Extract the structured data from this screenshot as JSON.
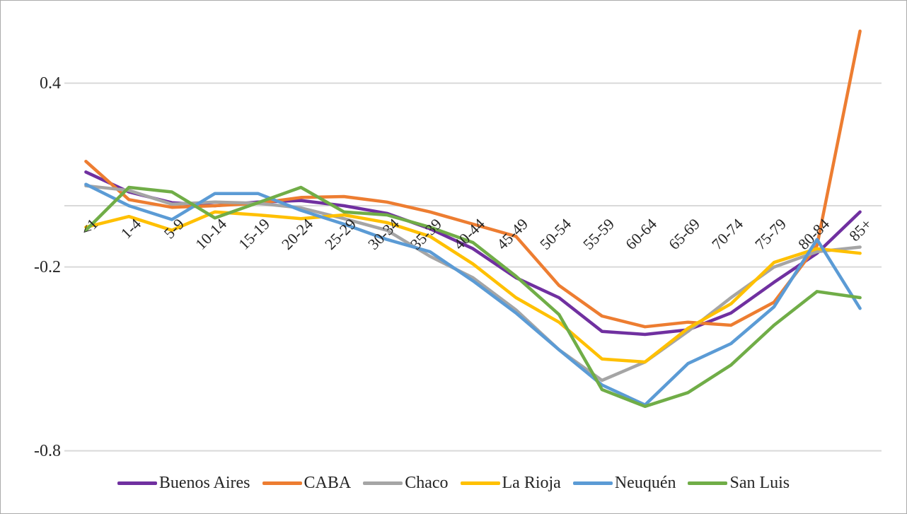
{
  "chart_data": {
    "type": "line",
    "title": "",
    "xlabel": "",
    "ylabel": "",
    "grid": true,
    "legend_position": "bottom",
    "categories": [
      "<1",
      "1-4",
      "5-9",
      "10-14",
      "15-19",
      "20-24",
      "25-29",
      "30-34",
      "35-39",
      "40-44",
      "45-49",
      "50-54",
      "55-59",
      "60-64",
      "65-69",
      "70-74",
      "75-79",
      "80-84",
      "85+"
    ],
    "series": [
      {
        "name": "Buenos Aires",
        "color": "#7030A0",
        "values": [
          0.11,
          0.045,
          0.01,
          0.0,
          0.012,
          0.017,
          0.0,
          -0.025,
          -0.075,
          -0.14,
          -0.235,
          -0.3,
          -0.41,
          -0.42,
          -0.405,
          -0.35,
          -0.25,
          -0.155,
          -0.02
        ]
      },
      {
        "name": "CABA",
        "color": "#ED7D31",
        "values": [
          0.145,
          0.02,
          -0.005,
          0.0,
          0.008,
          0.027,
          0.03,
          0.012,
          -0.02,
          -0.06,
          -0.1,
          -0.26,
          -0.36,
          -0.395,
          -0.38,
          -0.39,
          -0.315,
          -0.13,
          0.57
        ]
      },
      {
        "name": "Chaco",
        "color": "#A5A5A5",
        "values": [
          0.065,
          0.05,
          0.005,
          0.012,
          0.008,
          -0.007,
          -0.042,
          -0.08,
          -0.165,
          -0.235,
          -0.34,
          -0.47,
          -0.57,
          -0.51,
          -0.41,
          -0.3,
          -0.2,
          -0.15,
          -0.135
        ]
      },
      {
        "name": "La Rioja",
        "color": "#FFC000",
        "values": [
          -0.07,
          -0.035,
          -0.08,
          -0.02,
          -0.03,
          -0.042,
          -0.03,
          -0.055,
          -0.1,
          -0.19,
          -0.3,
          -0.38,
          -0.5,
          -0.51,
          -0.4,
          -0.32,
          -0.185,
          -0.14,
          -0.155
        ]
      },
      {
        "name": "Neuquén",
        "color": "#5B9BD5",
        "values": [
          0.07,
          0.0,
          -0.045,
          0.04,
          0.04,
          -0.015,
          -0.06,
          -0.11,
          -0.15,
          -0.245,
          -0.35,
          -0.47,
          -0.585,
          -0.65,
          -0.515,
          -0.45,
          -0.33,
          -0.11,
          -0.335
        ]
      },
      {
        "name": "San Luis",
        "color": "#70AD47",
        "values": [
          -0.08,
          0.06,
          0.045,
          -0.04,
          0.01,
          0.06,
          -0.02,
          -0.03,
          -0.07,
          -0.12,
          -0.23,
          -0.355,
          -0.6,
          -0.655,
          -0.61,
          -0.52,
          -0.39,
          -0.28,
          -0.3
        ]
      }
    ],
    "y_ticks": [
      {
        "label": "0.4",
        "value": 0.4
      },
      {
        "label": "-0.2",
        "value": -0.2
      },
      {
        "label": "-0.8",
        "value": -0.8
      }
    ],
    "gridline_values": [
      0.4,
      0.0,
      -0.2,
      -0.8
    ],
    "ylim": [
      -0.88,
      0.65
    ],
    "axis_cross_value": 0.0
  },
  "colors": {
    "gridline": "#D9D9D9",
    "text": "#262626",
    "frame_border": "#ABABAB",
    "background": "#FFFFFF"
  }
}
